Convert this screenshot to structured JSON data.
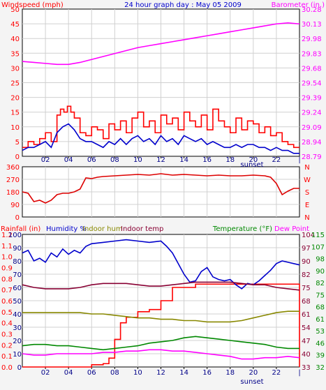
{
  "colors": {
    "red": "#ff0000",
    "darkred": "#dd0000",
    "blue": "#0000cc",
    "magenta": "#ff00ff",
    "olive": "#888800",
    "maroon": "#880033",
    "green": "#008800",
    "navy": "#000088",
    "grid": "#d0d0d0",
    "panel": "#ffffff"
  },
  "chart_data": [
    {
      "type": "line",
      "title": "24 hour graph day : May 05 2009",
      "ylabel": "Windspeed (mph)",
      "ylabel_right": "Barometer (in.)",
      "x_ticks": [
        "02",
        "04",
        "06",
        "08",
        "10",
        "12",
        "14",
        "16",
        "18",
        "20",
        "22"
      ],
      "x_marker": "sunset",
      "x_marker_hour": 19.8,
      "xlim": [
        0,
        24
      ],
      "ylim": [
        0,
        50
      ],
      "yticks": [
        0,
        5,
        10,
        15,
        20,
        25,
        30,
        35,
        40,
        45,
        50
      ],
      "ylim_right": [
        28.79,
        30.28
      ],
      "yticks_right": [
        "28.79",
        "28.94",
        "29.09",
        "29.24",
        "29.39",
        "29.54",
        "29.68",
        "29.83",
        "29.98",
        "30.13",
        "30.28"
      ],
      "grid": true,
      "series": [
        {
          "axis": "left",
          "color": "#ff0000",
          "step": true,
          "x": [
            0,
            0.5,
            1,
            1.5,
            2,
            2.5,
            3,
            3.3,
            3.6,
            3.9,
            4.2,
            4.5,
            5,
            5.5,
            6,
            6.5,
            7,
            7.5,
            8,
            8.5,
            9,
            9.5,
            10,
            10.5,
            11,
            11.5,
            12,
            12.5,
            13,
            13.5,
            14,
            14.5,
            15,
            15.5,
            16,
            16.5,
            17,
            17.5,
            18,
            18.5,
            19,
            19.5,
            20,
            20.5,
            21,
            21.5,
            22,
            22.5,
            23,
            23.5,
            24
          ],
          "y": [
            3,
            5,
            4,
            6,
            8,
            5,
            14,
            16,
            15,
            17,
            15,
            13,
            8,
            7,
            10,
            9,
            6,
            11,
            9,
            12,
            8,
            13,
            15,
            10,
            12,
            8,
            14,
            11,
            13,
            9,
            15,
            12,
            10,
            14,
            9,
            16,
            12,
            10,
            8,
            13,
            9,
            12,
            11,
            8,
            10,
            7,
            8,
            5,
            4,
            3,
            3
          ]
        },
        {
          "axis": "left",
          "color": "#0000cc",
          "x": [
            0,
            0.5,
            1,
            1.5,
            2,
            2.5,
            3,
            3.5,
            4,
            4.5,
            5,
            5.5,
            6,
            6.5,
            7,
            7.5,
            8,
            8.5,
            9,
            9.5,
            10,
            10.5,
            11,
            11.5,
            12,
            12.5,
            13,
            13.5,
            14,
            14.5,
            15,
            15.5,
            16,
            16.5,
            17,
            17.5,
            18,
            18.5,
            19,
            19.5,
            20,
            20.5,
            21,
            21.5,
            22,
            22.5,
            23,
            23.5,
            24
          ],
          "y": [
            2,
            3,
            3,
            4,
            5,
            3,
            8,
            10,
            11,
            9,
            6,
            5,
            5,
            4,
            3,
            5,
            4,
            6,
            4,
            6,
            7,
            5,
            6,
            4,
            7,
            5,
            6,
            4,
            7,
            6,
            5,
            6,
            4,
            5,
            4,
            3,
            3,
            4,
            3,
            4,
            4,
            3,
            3,
            2,
            3,
            2,
            2,
            1,
            1
          ]
        },
        {
          "axis": "right",
          "color": "#ff00ff",
          "x": [
            0,
            1,
            2,
            3,
            4,
            5,
            6,
            7,
            8,
            9,
            10,
            11,
            12,
            13,
            14,
            15,
            16,
            17,
            18,
            19,
            20,
            21,
            22,
            23,
            24
          ],
          "y": [
            29.75,
            29.74,
            29.73,
            29.72,
            29.72,
            29.74,
            29.77,
            29.8,
            29.83,
            29.86,
            29.89,
            29.91,
            29.93,
            29.95,
            29.97,
            29.99,
            30.01,
            30.03,
            30.05,
            30.07,
            30.09,
            30.11,
            30.13,
            30.14,
            30.13
          ]
        }
      ]
    },
    {
      "type": "line",
      "x_ticks": [],
      "xlim": [
        0,
        24
      ],
      "ylim": [
        0,
        360
      ],
      "yticks": [
        0,
        90,
        180,
        270,
        360
      ],
      "yticks_right": [
        "N",
        "E",
        "S",
        "W",
        "N"
      ],
      "grid": true,
      "series": [
        {
          "axis": "left",
          "color": "#dd0000",
          "x": [
            0,
            0.5,
            1,
            1.5,
            2,
            2.5,
            3,
            3.5,
            4,
            4.5,
            5,
            5.5,
            6,
            6.5,
            7,
            8,
            9,
            10,
            11,
            12,
            13,
            14,
            15,
            16,
            17,
            18,
            19,
            20,
            21,
            21.5,
            22,
            22.5,
            23,
            23.5,
            24
          ],
          "y": [
            180,
            170,
            110,
            120,
            100,
            120,
            160,
            170,
            170,
            180,
            200,
            280,
            275,
            285,
            290,
            295,
            300,
            305,
            300,
            310,
            300,
            305,
            300,
            295,
            300,
            295,
            295,
            300,
            295,
            285,
            240,
            160,
            185,
            205,
            205
          ]
        }
      ]
    },
    {
      "type": "line",
      "header_labels": [
        {
          "text": "Rainfall (in)",
          "color": "#ff0000"
        },
        {
          "text": "Humidity %",
          "color": "#0000cc"
        },
        {
          "text": "Indoor hum",
          "color": "#888800"
        },
        {
          "text": "Indoor temp",
          "color": "#880033"
        },
        {
          "text": "Temperature (°F)",
          "color": "#008800"
        },
        {
          "text": "Dew Point",
          "color": "#ff00ff"
        }
      ],
      "x_ticks": [
        "02",
        "04",
        "06",
        "08",
        "10",
        "12",
        "14",
        "16",
        "18",
        "20",
        "22"
      ],
      "x_marker": "sunset",
      "x_marker_hour": 19.8,
      "xlim": [
        0,
        24
      ],
      "ylim_hum": [
        0,
        100
      ],
      "yticks_hum": [
        0,
        10,
        20,
        30,
        40,
        50,
        60,
        70,
        80,
        90,
        100
      ],
      "ylim_rain": [
        0,
        1.2
      ],
      "yticks_rain": [
        "0.0",
        "0.1",
        "0.2",
        "0.3",
        "0.4",
        "0.5",
        "0.6",
        "0.7",
        "0.8",
        "0.9",
        "1.0",
        "1.1",
        "1.2"
      ],
      "ylim_temp_right": [
        32,
        115
      ],
      "yticks_temp_right": [
        32,
        39,
        46,
        53,
        61,
        68,
        75,
        82,
        90,
        98,
        107,
        115
      ],
      "ylim_temp_inner": [
        33,
        104
      ],
      "yticks_temp_inner": [
        33,
        40,
        47,
        54,
        61,
        68,
        75,
        82,
        90,
        97,
        104
      ],
      "grid": true,
      "series": [
        {
          "name": "Rainfall (in)",
          "axis": "rain",
          "color": "#ff0000",
          "step": true,
          "x": [
            0,
            5,
            6,
            7,
            7.5,
            8,
            8.5,
            9,
            10,
            11,
            12,
            13,
            14,
            15,
            16,
            17,
            18,
            19,
            20,
            21,
            22,
            23.8,
            24
          ],
          "y": [
            0,
            0,
            0.02,
            0.03,
            0.08,
            0.25,
            0.4,
            0.45,
            0.5,
            0.52,
            0.6,
            0.72,
            0.72,
            0.75,
            0.75,
            0.75,
            0.75,
            0.75,
            0.75,
            0.75,
            0.75,
            0.75,
            0
          ]
        },
        {
          "name": "Humidity %",
          "axis": "hum",
          "color": "#0000cc",
          "x": [
            0,
            0.5,
            1,
            1.5,
            2,
            2.5,
            3,
            3.5,
            4,
            4.5,
            5,
            5.5,
            6,
            7,
            8,
            9,
            10,
            11,
            12,
            12.5,
            13,
            13.5,
            14,
            14.5,
            15,
            15.5,
            16,
            16.5,
            17,
            17.5,
            18,
            18.5,
            19,
            19.5,
            20,
            20.5,
            21,
            21.5,
            22,
            22.5,
            23,
            23.5,
            24
          ],
          "y": [
            86,
            88,
            80,
            82,
            79,
            86,
            83,
            89,
            85,
            88,
            86,
            91,
            93,
            94,
            95,
            96,
            95,
            94,
            95,
            91,
            86,
            78,
            70,
            64,
            65,
            72,
            75,
            68,
            66,
            65,
            66,
            62,
            59,
            63,
            62,
            65,
            69,
            73,
            78,
            80,
            79,
            78,
            77
          ]
        },
        {
          "name": "Indoor hum",
          "axis": "hum",
          "color": "#888800",
          "x": [
            0,
            2,
            4,
            5,
            6,
            7,
            8,
            9,
            10,
            11,
            12,
            13,
            14,
            15,
            16,
            17,
            18,
            19,
            20,
            21,
            22,
            23,
            24
          ],
          "y": [
            41,
            41,
            41,
            41,
            40,
            40,
            39,
            38,
            37,
            37,
            36,
            36,
            35,
            35,
            34,
            34,
            34,
            35,
            37,
            39,
            41,
            42,
            42
          ]
        },
        {
          "name": "Indoor temp",
          "axis": "hum",
          "color": "#880033",
          "x": [
            0,
            1,
            2,
            3,
            4,
            5,
            6,
            7,
            8,
            9,
            10,
            11,
            12,
            13,
            14,
            15,
            16,
            17,
            18,
            19,
            20,
            21,
            22,
            23,
            24
          ],
          "y": [
            62,
            60,
            59,
            59,
            59,
            60,
            62,
            63,
            63,
            63,
            62,
            61,
            61,
            62,
            63,
            64,
            64,
            64,
            64,
            63,
            62,
            62,
            60,
            59,
            58
          ]
        },
        {
          "name": "Temperature (°F)",
          "axis": "hum",
          "color": "#008800",
          "x": [
            0,
            1,
            2,
            3,
            4,
            5,
            6,
            7,
            8,
            9,
            10,
            11,
            12,
            13,
            14,
            15,
            16,
            17,
            18,
            19,
            20,
            21,
            22,
            23,
            24
          ],
          "y": [
            16,
            17,
            17,
            16,
            16,
            15,
            14,
            13,
            14,
            15,
            16,
            18,
            19,
            20,
            22,
            23,
            22,
            21,
            20,
            19,
            18,
            17,
            15,
            14,
            14
          ]
        },
        {
          "name": "Dew Point",
          "axis": "hum",
          "color": "#ff00ff",
          "x": [
            0,
            1,
            2,
            3,
            4,
            5,
            6,
            7,
            8,
            9,
            10,
            11,
            12,
            13,
            14,
            15,
            16,
            17,
            18,
            19,
            20,
            21,
            22,
            23,
            24
          ],
          "y": [
            10,
            9,
            9,
            10,
            10,
            10,
            10,
            11,
            11,
            12,
            12,
            13,
            13,
            12,
            12,
            11,
            10,
            9,
            8,
            6,
            6,
            7,
            7,
            8,
            7
          ]
        }
      ]
    }
  ]
}
